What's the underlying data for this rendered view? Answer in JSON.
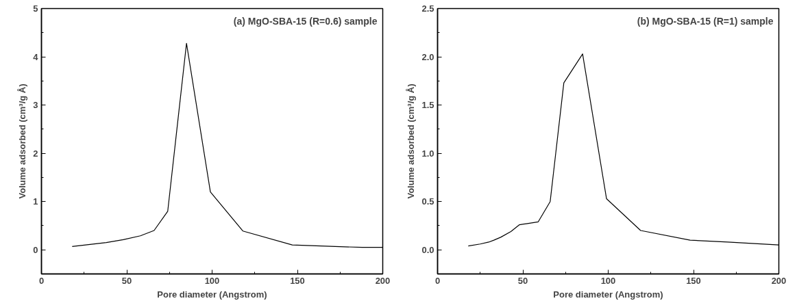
{
  "chart_data": [
    {
      "type": "line",
      "xlabel": "Pore diameter (Angstrom)",
      "ylabel": "Volume adsorbed (cm³/g Å)",
      "annotations": [
        "(a) MgO-SBA-15 (R=0.6) sample"
      ],
      "x": [
        18,
        38,
        48,
        58,
        66,
        74,
        85,
        99,
        118,
        147,
        188,
        200
      ],
      "series": [
        {
          "color": "#000000",
          "values": [
            0.07,
            0.15,
            0.21,
            0.29,
            0.4,
            0.8,
            4.28,
            1.2,
            0.39,
            0.1,
            0.05,
            0.05
          ]
        }
      ],
      "xlim": [
        0,
        200
      ],
      "ylim": [
        -0.5,
        5
      ],
      "xticks": [
        0,
        {
          "value": 25,
          "label": null
        },
        50,
        {
          "value": 75,
          "label": null
        },
        100,
        {
          "value": 125,
          "label": null
        },
        150,
        {
          "value": 175,
          "label": null
        },
        200
      ],
      "yticks": [
        {
          "value": -0.5,
          "label": null
        },
        0,
        {
          "value": 0.5,
          "label": null
        },
        1,
        {
          "value": 1.5,
          "label": null
        },
        2,
        {
          "value": 2.5,
          "label": null
        },
        3,
        {
          "value": 3.5,
          "label": null
        },
        4,
        {
          "value": 4.5,
          "label": null
        },
        5
      ],
      "grid": false,
      "marker": "none",
      "line_style": "solid"
    },
    {
      "type": "line",
      "xlabel": "Pore diameter (Angstrom)",
      "ylabel": "Volume adsorbed (cm³/g Å)",
      "annotations": [
        "(b) MgO-SBA-15 (R=1) sample"
      ],
      "x": [
        18,
        25,
        30,
        33,
        37,
        43,
        48,
        52,
        59,
        66,
        74,
        85,
        99,
        119,
        148,
        170,
        200
      ],
      "series": [
        {
          "color": "#000000",
          "values": [
            0.04,
            0.06,
            0.08,
            0.1,
            0.13,
            0.19,
            0.26,
            0.27,
            0.29,
            0.5,
            1.73,
            2.03,
            0.53,
            0.2,
            0.1,
            0.08,
            0.05
          ]
        }
      ],
      "xlim": [
        0,
        200
      ],
      "ylim": [
        -0.25,
        2.5
      ],
      "xticks": [
        0,
        {
          "value": 25,
          "label": null
        },
        50,
        {
          "value": 75,
          "label": null
        },
        100,
        {
          "value": 125,
          "label": null
        },
        150,
        {
          "value": 175,
          "label": null
        },
        200
      ],
      "yticks": [
        {
          "value": -0.25,
          "label": null
        },
        {
          "value": 0,
          "label": "0.0"
        },
        {
          "value": 0.25,
          "label": null
        },
        {
          "value": 0.5,
          "label": "0.5"
        },
        {
          "value": 0.75,
          "label": null
        },
        {
          "value": 1,
          "label": "1.0"
        },
        {
          "value": 1.25,
          "label": null
        },
        {
          "value": 1.5,
          "label": "1.5"
        },
        {
          "value": 1.75,
          "label": null
        },
        {
          "value": 2,
          "label": "2.0"
        },
        {
          "value": 2.25,
          "label": null
        },
        {
          "value": 2.5,
          "label": "2.5"
        }
      ],
      "grid": false,
      "marker": "none",
      "line_style": "solid"
    }
  ]
}
